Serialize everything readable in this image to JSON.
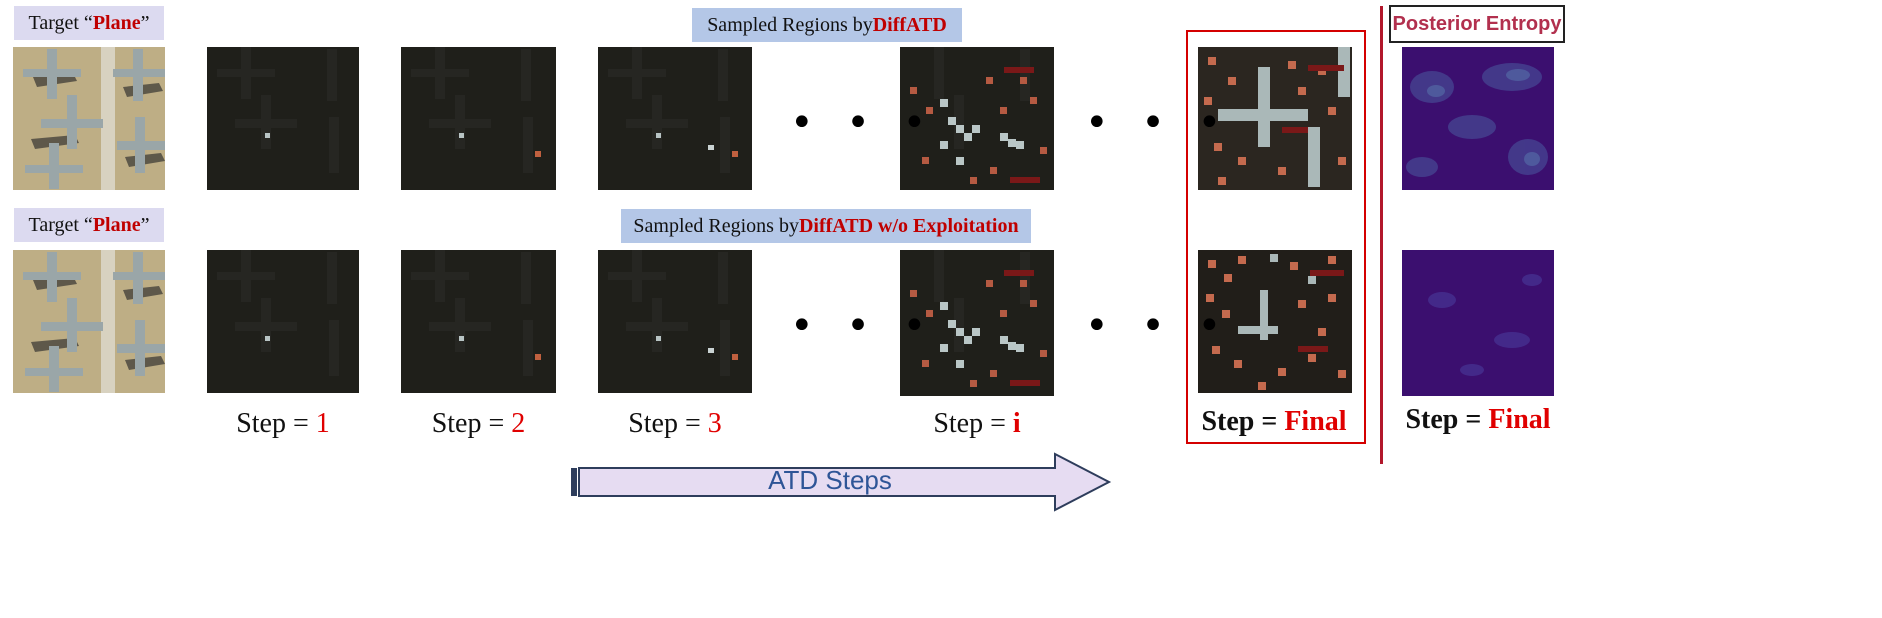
{
  "rows": [
    {
      "target_prefix": "Target “",
      "target_word": "Plane",
      "target_suffix": "”",
      "header_prefix": "Sampled Regions  by ",
      "header_method": "DiffATD"
    },
    {
      "target_prefix": "Target “",
      "target_word": "Plane",
      "target_suffix": "”",
      "header_prefix": "Sampled Regions  by ",
      "header_method": "DiffATD w/o Exploitation"
    }
  ],
  "steps": [
    {
      "prefix": "Step = ",
      "value": "1"
    },
    {
      "prefix": "Step = ",
      "value": "2"
    },
    {
      "prefix": "Step = ",
      "value": "3"
    },
    {
      "prefix": "Step = ",
      "value": "i"
    },
    {
      "prefix": "Step = ",
      "value": "Final"
    }
  ],
  "entropy": {
    "title": "Posterior Entropy",
    "step_prefix": "Step = ",
    "step_value": "Final"
  },
  "ellipsis": "• • •",
  "arrow_label": "ATD Steps",
  "colors": {
    "accent_red": "#c00000",
    "label_bg": "#dcdaf0",
    "header_bg": "#b4c7e7",
    "arrow_fill": "#e6dcf2",
    "arrow_text": "#2e5597",
    "entropy_base": "#3b0f6f"
  }
}
